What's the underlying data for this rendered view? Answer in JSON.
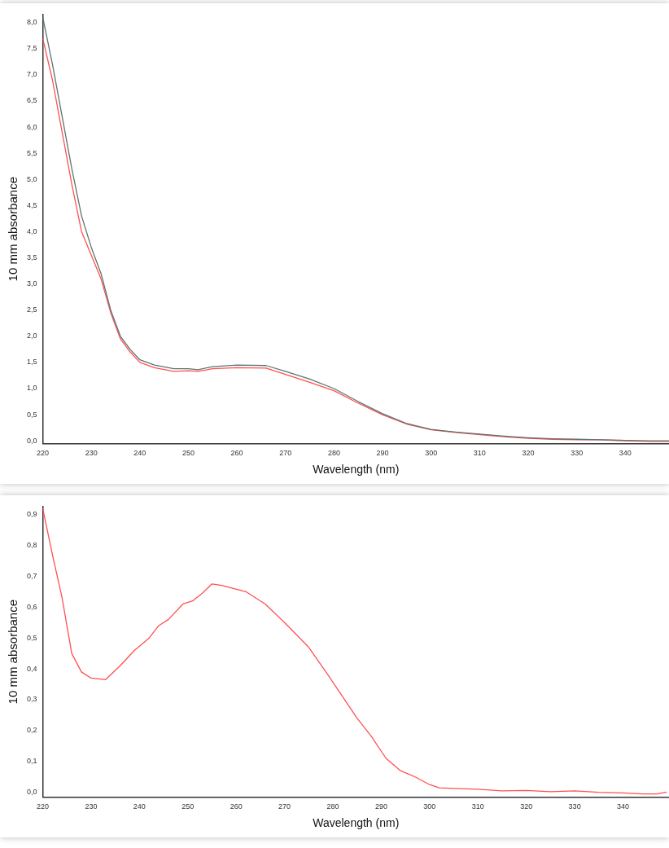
{
  "chart_data": [
    {
      "type": "line",
      "xlabel": "Wavelength (nm)",
      "ylabel": "10 mm absorbance",
      "xlim": [
        220,
        349
      ],
      "ylim": [
        -0.05,
        8.15
      ],
      "xticks": [
        220,
        230,
        240,
        250,
        260,
        270,
        280,
        290,
        300,
        310,
        320,
        330,
        340
      ],
      "yticks": [
        {
          "value": 0,
          "label": "0,0"
        },
        {
          "value": 0.5,
          "label": "0,5"
        },
        {
          "value": 1,
          "label": "1,0"
        },
        {
          "value": 1.5,
          "label": "1,5"
        },
        {
          "value": 2,
          "label": "2,0"
        },
        {
          "value": 2.5,
          "label": "2,5"
        },
        {
          "value": 3,
          "label": "3,0"
        },
        {
          "value": 3.5,
          "label": "3,5"
        },
        {
          "value": 4,
          "label": "4,0"
        },
        {
          "value": 4.5,
          "label": "4,5"
        },
        {
          "value": 5,
          "label": "5,0"
        },
        {
          "value": 5.5,
          "label": "5,5"
        },
        {
          "value": 6,
          "label": "6,0"
        },
        {
          "value": 6.5,
          "label": "6,5"
        },
        {
          "value": 7,
          "label": "7,0"
        },
        {
          "value": 7.5,
          "label": "7,5"
        },
        {
          "value": 8,
          "label": "8,0"
        }
      ],
      "grid": false,
      "legend": false,
      "marker": "none",
      "line_style": "solid",
      "x": [
        220,
        222,
        224,
        226,
        228,
        230,
        232,
        234,
        236,
        238,
        240,
        243,
        247,
        250,
        252,
        255,
        260,
        266,
        270,
        275,
        280,
        285,
        290,
        295,
        300,
        305,
        310,
        315,
        320,
        325,
        330,
        335,
        340,
        345,
        349
      ],
      "series": [
        {
          "color": "#5f7373",
          "values": [
            8.1,
            7.2,
            6.2,
            5.2,
            4.3,
            3.7,
            3.2,
            2.5,
            2.0,
            1.75,
            1.55,
            1.45,
            1.38,
            1.38,
            1.36,
            1.42,
            1.45,
            1.44,
            1.33,
            1.18,
            1.0,
            0.75,
            0.52,
            0.33,
            0.22,
            0.17,
            0.13,
            0.09,
            0.06,
            0.04,
            0.03,
            0.02,
            0.01,
            0.0,
            0.0
          ]
        },
        {
          "color": "#ff5050",
          "values": [
            7.7,
            6.9,
            5.9,
            4.9,
            4.0,
            3.55,
            3.1,
            2.45,
            1.95,
            1.7,
            1.5,
            1.4,
            1.33,
            1.34,
            1.33,
            1.38,
            1.4,
            1.39,
            1.27,
            1.12,
            0.96,
            0.72,
            0.5,
            0.32,
            0.21,
            0.16,
            0.12,
            0.08,
            0.05,
            0.03,
            0.02,
            0.02,
            0.0,
            -0.01,
            -0.01
          ]
        }
      ]
    },
    {
      "type": "line",
      "xlabel": "Wavelength (nm)",
      "ylabel": "10 mm absorbance",
      "xlim": [
        220,
        349.5
      ],
      "ylim": [
        -0.015,
        0.925
      ],
      "xticks": [
        220,
        230,
        240,
        250,
        260,
        270,
        280,
        290,
        300,
        310,
        320,
        330,
        340
      ],
      "yticks": [
        {
          "value": 0,
          "label": "0,0"
        },
        {
          "value": 0.1,
          "label": "0,1"
        },
        {
          "value": 0.2,
          "label": "0,2"
        },
        {
          "value": 0.3,
          "label": "0,3"
        },
        {
          "value": 0.4,
          "label": "0,4"
        },
        {
          "value": 0.5,
          "label": "0,5"
        },
        {
          "value": 0.6,
          "label": "0,6"
        },
        {
          "value": 0.7,
          "label": "0,7"
        },
        {
          "value": 0.8,
          "label": "0,8"
        },
        {
          "value": 0.9,
          "label": "0,9"
        }
      ],
      "grid": false,
      "legend": false,
      "marker": "none",
      "line_style": "solid",
      "x": [
        220,
        222,
        224,
        226,
        228,
        230,
        233,
        236,
        239,
        242,
        244,
        246,
        249,
        251,
        253,
        255,
        257,
        262,
        266,
        270,
        275,
        279,
        282,
        285,
        288,
        291,
        294,
        297,
        300,
        302,
        305,
        310,
        315,
        320,
        325,
        330,
        335,
        340,
        344,
        347,
        349
      ],
      "series": [
        {
          "color": "#ff5050",
          "values": [
            0.92,
            0.77,
            0.63,
            0.45,
            0.39,
            0.37,
            0.365,
            0.41,
            0.46,
            0.5,
            0.54,
            0.56,
            0.61,
            0.62,
            0.645,
            0.675,
            0.67,
            0.65,
            0.61,
            0.55,
            0.47,
            0.38,
            0.31,
            0.24,
            0.18,
            0.11,
            0.07,
            0.05,
            0.025,
            0.015,
            0.013,
            0.01,
            0.005,
            0.006,
            0.002,
            0.005,
            0.0,
            -0.002,
            -0.005,
            -0.005,
            0.001
          ]
        }
      ]
    }
  ]
}
